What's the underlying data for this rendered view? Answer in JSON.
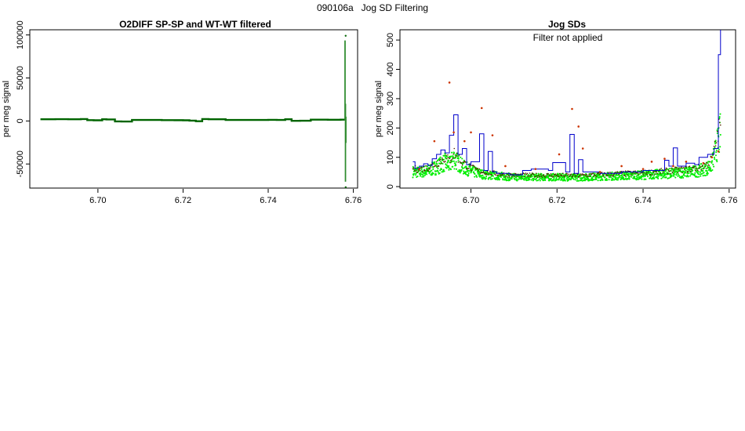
{
  "page_title": "090106a   Jog SD Filtering",
  "chart_data": [
    {
      "type": "line",
      "title": "O2DIFF SP-SP and WT-WT filtered",
      "xlabel": "",
      "ylabel": "per meg signal",
      "xlim": [
        6.684,
        6.761
      ],
      "ylim": [
        -78000,
        106000
      ],
      "xticks": [
        6.7,
        6.72,
        6.74,
        6.76
      ],
      "xtick_labels": [
        "6.70",
        "6.72",
        "6.74",
        "6.76"
      ],
      "yticks": [
        -50000,
        0,
        50000,
        100000
      ],
      "ytick_labels": [
        "-50000",
        "0",
        "50000",
        "100000"
      ],
      "grid": false,
      "series": [
        {
          "color": "#006400",
          "x": [
            6.6865,
            6.69,
            6.693,
            6.696,
            6.6975,
            6.699,
            6.701,
            6.702,
            6.704,
            6.7055,
            6.708,
            6.71,
            6.715,
            6.718,
            6.72,
            6.7215,
            6.723,
            6.7245,
            6.726,
            6.73,
            6.735,
            6.74,
            6.742,
            6.744,
            6.7455,
            6.7475,
            6.75,
            6.754,
            6.757,
            6.758
          ],
          "y": [
            2000,
            2100,
            2000,
            2200,
            1000,
            800,
            2000,
            1800,
            -500,
            -600,
            1200,
            1200,
            1000,
            900,
            800,
            400,
            -300,
            2200,
            2000,
            1200,
            1200,
            1300,
            1200,
            2000,
            200,
            300,
            1500,
            1400,
            1500,
            1500
          ]
        },
        {
          "color": "#2e8b2e",
          "x": [
            6.758,
            6.758,
            6.7581,
            6.7581,
            6.7582,
            6.7582,
            6.7583,
            6.7583
          ],
          "y": [
            1500,
            93000,
            92000,
            -70000,
            20000,
            -25000,
            5000,
            1500
          ]
        }
      ],
      "markers": [
        {
          "x": 6.7582,
          "y": 99000,
          "color": "#006400"
        },
        {
          "x": 6.7582,
          "y": -77000,
          "color": "#006400"
        }
      ]
    },
    {
      "type": "line",
      "title": "Jog SDs",
      "subtitle": "Filter not applied",
      "xlabel": "",
      "ylabel": "per meg signal",
      "xlim": [
        6.6835,
        6.7615
      ],
      "ylim": [
        -5,
        535
      ],
      "xticks": [
        6.7,
        6.72,
        6.74,
        6.76
      ],
      "xtick_labels": [
        "6.70",
        "6.72",
        "6.74",
        "6.76"
      ],
      "yticks": [
        0,
        100,
        200,
        300,
        400,
        500
      ],
      "ytick_labels": [
        "0",
        "100",
        "200",
        "300",
        "400",
        "500"
      ],
      "grid": false,
      "step_series": {
        "color": "#0000cc",
        "x": [
          6.6865,
          6.687,
          6.688,
          6.689,
          6.69,
          6.691,
          6.692,
          6.693,
          6.694,
          6.695,
          6.696,
          6.697,
          6.698,
          6.699,
          6.7,
          6.702,
          6.703,
          6.704,
          6.705,
          6.706,
          6.709,
          6.712,
          6.714,
          6.718,
          6.719,
          6.722,
          6.723,
          6.724,
          6.725,
          6.726,
          6.73,
          6.735,
          6.74,
          6.745,
          6.746,
          6.747,
          6.748,
          6.75,
          6.752,
          6.753,
          6.755,
          6.7565,
          6.7575,
          6.758
        ],
        "y": [
          85,
          62,
          70,
          78,
          72,
          95,
          110,
          125,
          115,
          175,
          245,
          110,
          130,
          75,
          85,
          180,
          55,
          120,
          50,
          45,
          40,
          55,
          60,
          55,
          82,
          50,
          178,
          45,
          92,
          50,
          45,
          50,
          55,
          90,
          70,
          132,
          70,
          80,
          75,
          100,
          110,
          130,
          450,
          535
        ]
      },
      "outlier_points": {
        "color": "#cc3300",
        "x": [
          6.688,
          6.6915,
          6.695,
          6.696,
          6.6985,
          6.7,
          6.7025,
          6.705,
          6.708,
          6.715,
          6.7205,
          6.7235,
          6.725,
          6.726,
          6.73,
          6.735,
          6.74,
          6.742,
          6.745,
          6.747,
          6.75,
          6.754,
          6.756,
          6.7575
        ],
        "y": [
          60,
          155,
          355,
          185,
          155,
          185,
          268,
          175,
          70,
          60,
          110,
          265,
          205,
          130,
          50,
          70,
          60,
          85,
          95,
          70,
          85,
          80,
          100,
          120
        ]
      },
      "green_band": {
        "color": "#00ee00",
        "x": [
          6.6865,
          6.688,
          6.69,
          6.692,
          6.694,
          6.695,
          6.696,
          6.698,
          6.7,
          6.702,
          6.704,
          6.706,
          6.708,
          6.71,
          6.715,
          6.72,
          6.725,
          6.73,
          6.735,
          6.74,
          6.745,
          6.75,
          6.753,
          6.755,
          6.756,
          6.757,
          6.758
        ],
        "y": [
          52,
          50,
          55,
          68,
          85,
          75,
          100,
          70,
          55,
          45,
          40,
          38,
          35,
          33,
          33,
          33,
          32,
          35,
          38,
          40,
          45,
          50,
          55,
          65,
          80,
          130,
          190
        ]
      }
    }
  ]
}
